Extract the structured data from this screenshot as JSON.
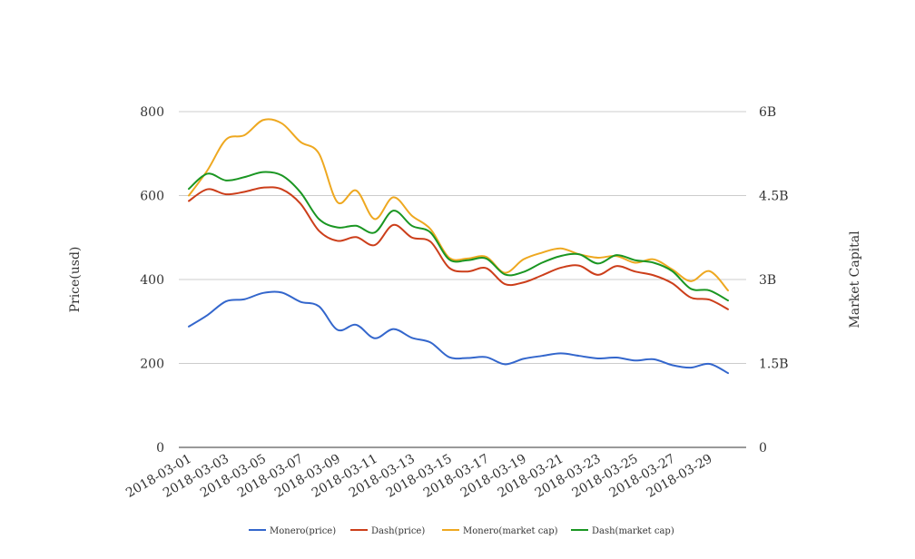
{
  "chart_data": {
    "type": "line",
    "x": [
      "2018-03-01",
      "2018-03-02",
      "2018-03-03",
      "2018-03-04",
      "2018-03-05",
      "2018-03-06",
      "2018-03-07",
      "2018-03-08",
      "2018-03-09",
      "2018-03-10",
      "2018-03-11",
      "2018-03-12",
      "2018-03-13",
      "2018-03-14",
      "2018-03-15",
      "2018-03-16",
      "2018-03-17",
      "2018-03-18",
      "2018-03-19",
      "2018-03-20",
      "2018-03-21",
      "2018-03-22",
      "2018-03-23",
      "2018-03-24",
      "2018-03-25",
      "2018-03-26",
      "2018-03-27",
      "2018-03-28",
      "2018-03-29",
      "2018-03-30"
    ],
    "xtick_labels": [
      "2018-03-01",
      "2018-03-03",
      "2018-03-05",
      "2018-03-07",
      "2018-03-09",
      "2018-03-11",
      "2018-03-13",
      "2018-03-15",
      "2018-03-17",
      "2018-03-19",
      "2018-03-21",
      "2018-03-23",
      "2018-03-25",
      "2018-03-27",
      "2018-03-29"
    ],
    "ylabel_left": "Price(usd)",
    "ylabel_right": "Market Capital",
    "ylim_left": [
      0,
      800
    ],
    "ylim_right": [
      0,
      6000000000
    ],
    "yticks_left": [
      "0",
      "200",
      "400",
      "600",
      "800"
    ],
    "yticks_right": [
      "0",
      "1.5B",
      "3B",
      "4.5B",
      "6B"
    ],
    "grid": true,
    "legend_position": "bottom",
    "series": [
      {
        "name": "Monero(price)",
        "axis": "left",
        "color": "#3366cc",
        "values": [
          288,
          315,
          348,
          353,
          368,
          369,
          347,
          336,
          280,
          292,
          260,
          282,
          261,
          250,
          215,
          213,
          215,
          198,
          211,
          218,
          224,
          218,
          212,
          214,
          207,
          210,
          196,
          190,
          199,
          177
        ]
      },
      {
        "name": "Dash(price)",
        "axis": "left",
        "color": "#cc3e1a",
        "values": [
          587,
          615,
          603,
          609,
          619,
          615,
          581,
          516,
          492,
          501,
          482,
          530,
          500,
          490,
          428,
          419,
          427,
          389,
          393,
          410,
          428,
          433,
          411,
          432,
          419,
          410,
          391,
          357,
          352,
          329
        ]
      },
      {
        "name": "Monero(market cap)",
        "axis": "right",
        "color": "#eea820",
        "values": [
          4500000000,
          4950000000,
          5500000000,
          5580000000,
          5850000000,
          5790000000,
          5460000000,
          5250000000,
          4380000000,
          4590000000,
          4080000000,
          4470000000,
          4140000000,
          3900000000,
          3390000000,
          3375000000,
          3405000000,
          3120000000,
          3360000000,
          3480000000,
          3555000000,
          3450000000,
          3390000000,
          3420000000,
          3300000000,
          3360000000,
          3180000000,
          2970000000,
          3150000000,
          2805000000
        ]
      },
      {
        "name": "Dash(market cap)",
        "axis": "right",
        "color": "#1a9622",
        "values": [
          4620000000,
          4890000000,
          4770000000,
          4830000000,
          4920000000,
          4860000000,
          4560000000,
          4080000000,
          3930000000,
          3960000000,
          3840000000,
          4230000000,
          3960000000,
          3840000000,
          3360000000,
          3345000000,
          3375000000,
          3090000000,
          3135000000,
          3300000000,
          3420000000,
          3450000000,
          3285000000,
          3435000000,
          3345000000,
          3300000000,
          3150000000,
          2835000000,
          2805000000,
          2625000000
        ]
      }
    ]
  }
}
